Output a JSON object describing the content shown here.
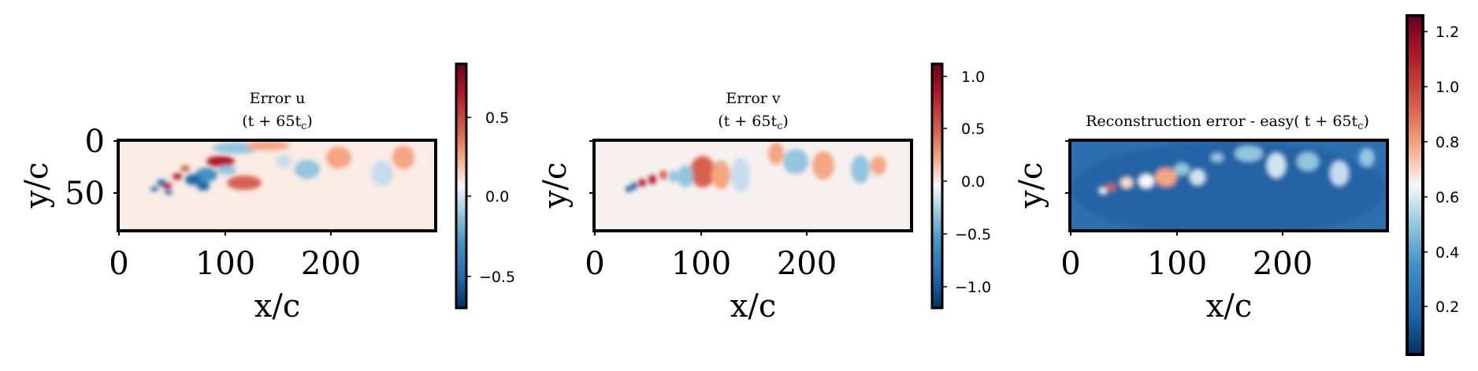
{
  "chart_data": [
    {
      "type": "heatmap",
      "title_line1": "Error u",
      "title_line2": "(t + 65t",
      "title_sub": "c",
      "xlabel": "x/c",
      "ylabel": "y/c",
      "xlim": [
        0,
        300
      ],
      "ylim": [
        0,
        88
      ],
      "x_ticks": [
        "0",
        "100",
        "200"
      ],
      "y_ticks": [
        "0",
        "50"
      ],
      "colormap": "RdBu_r",
      "colorbar": {
        "range": [
          -0.7,
          0.82
        ],
        "ticks": [
          "0.5",
          "0.0",
          "−0.5"
        ]
      }
    },
    {
      "type": "heatmap",
      "title_line1": "Error v",
      "title_line2": "(t + 65t",
      "title_sub": "c",
      "xlabel": "x/c",
      "ylabel": "y/c",
      "xlim": [
        0,
        300
      ],
      "ylim": [
        0,
        88
      ],
      "x_ticks": [
        "0",
        "100",
        "200"
      ],
      "y_ticks": [],
      "colormap": "RdBu_r",
      "colorbar": {
        "range": [
          -1.2,
          1.12
        ],
        "ticks": [
          "1.0",
          "0.5",
          "0.0",
          "−0.5",
          "−1.0"
        ]
      }
    },
    {
      "type": "heatmap",
      "title_line1": "Reconstruction error - easy( t + 65t",
      "title_sub": "c",
      "xlabel": "x/c",
      "ylabel": "y/c",
      "xlim": [
        0,
        300
      ],
      "ylim": [
        0,
        88
      ],
      "x_ticks": [
        "0",
        "100",
        "200"
      ],
      "y_ticks": [],
      "colormap": "RdBu_r",
      "colorbar": {
        "range": [
          0.0,
          1.27
        ],
        "ticks": [
          "1.2",
          "1.0",
          "0.8",
          "0.6",
          "0.4",
          "0.2"
        ]
      }
    }
  ],
  "colors": {
    "dark_red": "#67001f",
    "red": "#d6604d",
    "light_red": "#f4a582",
    "white": "#f7f7f7",
    "light_blue": "#92c5de",
    "blue": "#4393c3",
    "dark_blue": "#053061"
  }
}
